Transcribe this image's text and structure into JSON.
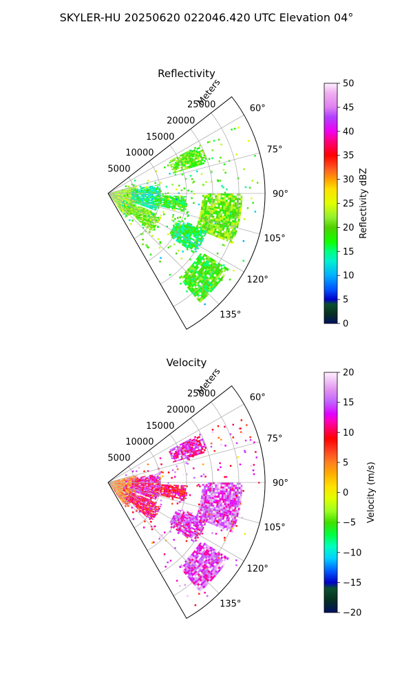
{
  "figure": {
    "suptitle": "SKYLER-HU  20250620  022046.420 UTC Elevation 04°"
  },
  "chart_data": [
    {
      "type": "heatmap",
      "projection": "polar-sector",
      "title": "Reflectivity",
      "radial_label": "Meters",
      "radial_ticks": [
        5000,
        10000,
        15000,
        20000,
        25000
      ],
      "radial_tick_labels": [
        "5000",
        "10000",
        "15000",
        "20000",
        "25000"
      ],
      "r_max": 30000,
      "theta_range_deg": [
        52,
        150
      ],
      "angle_ticks": [
        60,
        75,
        90,
        105,
        120,
        135
      ],
      "angle_tick_labels": [
        "60°",
        "75°",
        "90°",
        "105°",
        "120°",
        "135°"
      ],
      "grid": true,
      "colorbar": {
        "label": "Reflectivity dBZ",
        "range": [
          0,
          50
        ],
        "ticks": [
          0,
          5,
          10,
          15,
          20,
          25,
          30,
          35,
          40,
          45,
          50
        ],
        "tick_labels": [
          "0",
          "5",
          "10",
          "15",
          "20",
          "25",
          "30",
          "35",
          "40",
          "45",
          "50"
        ],
        "stops": [
          [
            0,
            "#001060"
          ],
          [
            2,
            "#063020"
          ],
          [
            4,
            "#0a5030"
          ],
          [
            5,
            "#0000c8"
          ],
          [
            7,
            "#0050ff"
          ],
          [
            10,
            "#00b0ff"
          ],
          [
            13,
            "#00f0d0"
          ],
          [
            15,
            "#00ff80"
          ],
          [
            17,
            "#10ff00"
          ],
          [
            20,
            "#50d000"
          ],
          [
            22,
            "#90f030"
          ],
          [
            25,
            "#e0ff00"
          ],
          [
            28,
            "#ffe000"
          ],
          [
            30,
            "#ffa000"
          ],
          [
            32,
            "#ff6020"
          ],
          [
            35,
            "#ff0000"
          ],
          [
            38,
            "#ff0080"
          ],
          [
            40,
            "#f000f0"
          ],
          [
            43,
            "#b040ff"
          ],
          [
            45,
            "#e080f0"
          ],
          [
            48,
            "#f0b0f0"
          ],
          [
            50,
            "#fff0ff"
          ]
        ]
      },
      "echo_regions": [
        {
          "az": [
            75,
            145
          ],
          "r": [
            0,
            5500
          ],
          "value": 22
        },
        {
          "az": [
            80,
            110
          ],
          "r": [
            4500,
            10000
          ],
          "value": 14
        },
        {
          "az": [
            112,
            132
          ],
          "r": [
            4500,
            11000
          ],
          "value": 21
        },
        {
          "az": [
            92,
            104
          ],
          "r": [
            9000,
            15000
          ],
          "value": 18
        },
        {
          "az": [
            62,
            73
          ],
          "r": [
            13000,
            20000
          ],
          "value": 20
        },
        {
          "az": [
            90,
            112
          ],
          "r": [
            18000,
            25500
          ],
          "value": 21
        },
        {
          "az": [
            122,
            140
          ],
          "r": [
            21000,
            27000
          ],
          "value": 19
        },
        {
          "az": [
            110,
            125
          ],
          "r": [
            14000,
            20000
          ],
          "value": 16
        }
      ]
    },
    {
      "type": "heatmap",
      "projection": "polar-sector",
      "title": "Velocity",
      "radial_label": "Meters",
      "radial_ticks": [
        5000,
        10000,
        15000,
        20000,
        25000
      ],
      "radial_tick_labels": [
        "5000",
        "10000",
        "15000",
        "20000",
        "25000"
      ],
      "r_max": 30000,
      "theta_range_deg": [
        52,
        150
      ],
      "angle_ticks": [
        60,
        75,
        90,
        105,
        120,
        135
      ],
      "angle_tick_labels": [
        "60°",
        "75°",
        "90°",
        "105°",
        "120°",
        "135°"
      ],
      "grid": true,
      "colorbar": {
        "label": "Velocity (m/s)",
        "range": [
          -20,
          20
        ],
        "ticks": [
          -20,
          -15,
          -10,
          -5,
          0,
          5,
          10,
          15,
          20
        ],
        "tick_labels": [
          "−20",
          "−15",
          "−10",
          "−5",
          "0",
          "5",
          "10",
          "15",
          "20"
        ],
        "stops": [
          [
            -20,
            "#001060"
          ],
          [
            -18,
            "#063020"
          ],
          [
            -16,
            "#0a5030"
          ],
          [
            -15,
            "#0000c8"
          ],
          [
            -13,
            "#0060ff"
          ],
          [
            -11,
            "#00d0ff"
          ],
          [
            -9,
            "#00ffc0"
          ],
          [
            -7,
            "#00ff40"
          ],
          [
            -5,
            "#40e000"
          ],
          [
            -3,
            "#a0ff20"
          ],
          [
            -1,
            "#e0ff00"
          ],
          [
            1,
            "#ffe000"
          ],
          [
            3,
            "#ffb000"
          ],
          [
            5,
            "#ff8020"
          ],
          [
            7,
            "#ff4020"
          ],
          [
            9,
            "#ff0000"
          ],
          [
            11,
            "#ff0080"
          ],
          [
            12,
            "#ff00c0"
          ],
          [
            13,
            "#e000ff"
          ],
          [
            15,
            "#c060ff"
          ],
          [
            17,
            "#e090f0"
          ],
          [
            20,
            "#fff0ff"
          ]
        ]
      },
      "echo_regions": [
        {
          "az": [
            75,
            145
          ],
          "r": [
            0,
            5500
          ],
          "value": 5
        },
        {
          "az": [
            80,
            110
          ],
          "r": [
            4500,
            10000
          ],
          "value": 12
        },
        {
          "az": [
            112,
            132
          ],
          "r": [
            4500,
            11000
          ],
          "value": 10
        },
        {
          "az": [
            92,
            104
          ],
          "r": [
            9000,
            15000
          ],
          "value": 10
        },
        {
          "az": [
            62,
            73
          ],
          "r": [
            13000,
            20000
          ],
          "value": 13
        },
        {
          "az": [
            90,
            112
          ],
          "r": [
            18000,
            25500
          ],
          "value": 15
        },
        {
          "az": [
            122,
            140
          ],
          "r": [
            21000,
            27000
          ],
          "value": 15
        },
        {
          "az": [
            110,
            125
          ],
          "r": [
            14000,
            20000
          ],
          "value": 14
        }
      ]
    }
  ]
}
